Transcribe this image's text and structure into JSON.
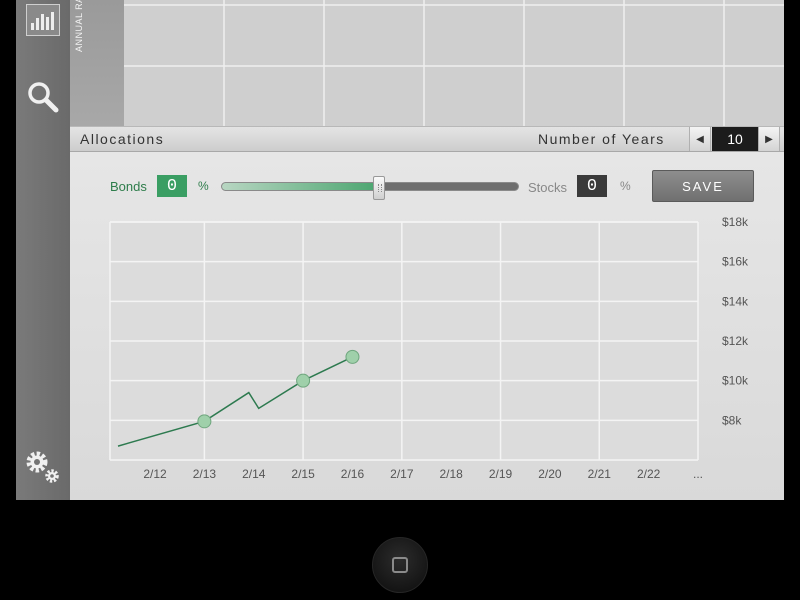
{
  "sidebar": {
    "icons": [
      "bar-chart-icon",
      "search-icon",
      "gears-icon"
    ]
  },
  "rate_tab": {
    "label": "ANNUAL RATE %"
  },
  "allocations": {
    "title": "Allocations",
    "years_label": "Number of Years",
    "years_value": "10",
    "prev_arrow": "◀",
    "next_arrow": "▶"
  },
  "controls": {
    "bonds_label": "Bonds",
    "bonds_value": "0",
    "bonds_pct": "%",
    "stocks_label": "Stocks",
    "stocks_value": "0",
    "stocks_pct": "%",
    "slider_level": 0.53,
    "save_label": "SAVE"
  },
  "chart_data": {
    "type": "line",
    "categories": [
      "2/12",
      "2/13",
      "2/14",
      "2/15",
      "2/16",
      "2/17",
      "2/18",
      "2/19",
      "2/20",
      "2/21",
      "2/22",
      "..."
    ],
    "y_ticks": [
      "$18k",
      "$16k",
      "$14k",
      "$12k",
      "$10k",
      "$8k"
    ],
    "y_tick_values": [
      18000,
      16000,
      14000,
      12000,
      10000,
      8000
    ],
    "ylim": [
      6000,
      18000
    ],
    "xlim": [
      -0.75,
      11
    ],
    "series": [
      {
        "points": [
          [
            -0.75,
            6700
          ],
          [
            1,
            7950
          ],
          [
            1.9,
            9400
          ],
          [
            2.1,
            8600
          ],
          [
            3,
            10000
          ],
          [
            4,
            11200
          ]
        ],
        "markers": [
          [
            1,
            7950
          ],
          [
            3,
            10000
          ],
          [
            4,
            11200
          ]
        ],
        "color": "#2d7a4f"
      }
    ],
    "grid": true,
    "y_axis_position": "right"
  },
  "colors": {
    "accent": "#3a9e63",
    "line": "#2d7a4f",
    "marker": "#9fd0aa"
  },
  "device": {
    "home_button": "home-button"
  }
}
